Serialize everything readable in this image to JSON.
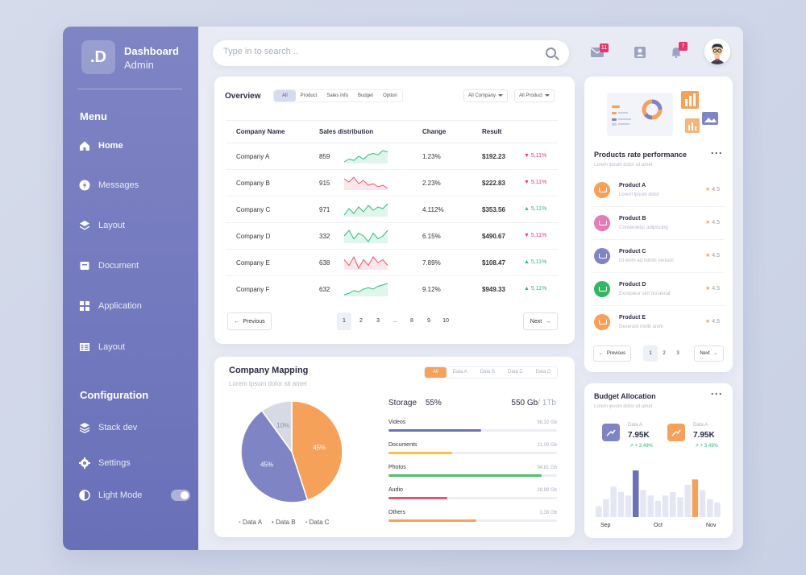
{
  "brand": {
    "logo": ".D",
    "title": "Dashboard",
    "subtitle": "Admin"
  },
  "menu": {
    "title": "Menu",
    "items": [
      {
        "label": "Home",
        "icon": "home-icon"
      },
      {
        "label": "Messages",
        "icon": "bolt-icon"
      },
      {
        "label": "Layout",
        "icon": "layers-icon"
      },
      {
        "label": "Document",
        "icon": "document-icon"
      },
      {
        "label": "Application",
        "icon": "grid-icon"
      },
      {
        "label": "Layout",
        "icon": "list-icon"
      }
    ]
  },
  "config": {
    "title": "Configuration",
    "items": [
      {
        "label": "Stack dev",
        "icon": "stack-icon"
      },
      {
        "label": "Settings",
        "icon": "gear-icon"
      },
      {
        "label": "Light Mode",
        "icon": "half-moon-icon"
      }
    ]
  },
  "search": {
    "placeholder": "Type in to search .."
  },
  "header": {
    "mail_badge": "11",
    "bell_badge": "7"
  },
  "overview": {
    "title": "Overview",
    "filters": [
      "All",
      "Product",
      "Sales Info",
      "Budget",
      "Option"
    ],
    "dropdown_company": "All Company",
    "dropdown_product": "All Product",
    "columns": [
      "Company Name",
      "Sales distribution",
      "Change",
      "Result"
    ],
    "rows": [
      {
        "name": "Company A",
        "sales": "859",
        "change": "1.23%",
        "result": "$192.23",
        "delta": "5,11%",
        "dir": "down",
        "spark": [
          4,
          6,
          5,
          8,
          6,
          9,
          10,
          9,
          12,
          11
        ]
      },
      {
        "name": "Company B",
        "sales": "915",
        "change": "2.23%",
        "result": "$222.83",
        "delta": "5,11%",
        "dir": "down",
        "spark": [
          10,
          8,
          11,
          7,
          9,
          6,
          7,
          5,
          6,
          4
        ]
      },
      {
        "name": "Company C",
        "sales": "971",
        "change": "4.112%",
        "result": "$353.56",
        "delta": "5,11%",
        "dir": "up",
        "spark": [
          5,
          9,
          6,
          10,
          7,
          11,
          8,
          10,
          9,
          12
        ]
      },
      {
        "name": "Company D",
        "sales": "332",
        "change": "6.15%",
        "result": "$490.67",
        "delta": "5,11%",
        "dir": "down",
        "spark": [
          8,
          10,
          7,
          9,
          8,
          6,
          9,
          7,
          8,
          10
        ]
      },
      {
        "name": "Company E",
        "sales": "638",
        "change": "7.89%",
        "result": "$108.47",
        "delta": "5,11%",
        "dir": "up",
        "spark": [
          9,
          7,
          10,
          6,
          9,
          7,
          10,
          8,
          9,
          7
        ]
      },
      {
        "name": "Company F",
        "sales": "632",
        "change": "9.12%",
        "result": "$949.33",
        "delta": "5,11%",
        "dir": "up",
        "spark": [
          4,
          5,
          7,
          6,
          8,
          9,
          8,
          10,
          11,
          12
        ]
      }
    ],
    "prev": "Previous",
    "next": "Next",
    "pages": [
      "1",
      "2",
      "3",
      "...",
      "8",
      "9",
      "10"
    ]
  },
  "mapping": {
    "title": "Company Mapping",
    "subtitle": "Lorem ipsum dolor sit amet",
    "filters": [
      "All",
      "Data A",
      "Data B",
      "Data C",
      "Data D"
    ],
    "storage_label": "Storage",
    "storage_pct": "55%",
    "storage_total_used": "550 Gb",
    "storage_total_cap": "/ 1Tb",
    "items": [
      {
        "label": "Videos",
        "value": "98,32 Gb",
        "fill": 0.55,
        "color": "#6a70b8"
      },
      {
        "label": "Documents",
        "value": "21,00 Gb",
        "fill": 0.38,
        "color": "#f5c242"
      },
      {
        "label": "Photos",
        "value": "94,81 Gb",
        "fill": 0.91,
        "color": "#4cc26a"
      },
      {
        "label": "Audio",
        "value": "28,98 Gb",
        "fill": 0.35,
        "color": "#e8546b"
      },
      {
        "label": "Others",
        "value": "3,38 Gb",
        "fill": 0.52,
        "color": "#f6a15a"
      }
    ],
    "legend": [
      "Data A",
      "Data B",
      "Data C"
    ]
  },
  "chart_data": {
    "type": "pie",
    "categories": [
      "Data A",
      "Data B",
      "Data C"
    ],
    "values": [
      45,
      45,
      10
    ],
    "labels": [
      "45%",
      "45%",
      "10%"
    ],
    "colors": [
      "#f6a15a",
      "#7e84c4",
      "#d7dae4"
    ]
  },
  "products": {
    "title": "Products rate performance",
    "subtitle": "Lorem ipsum dolor sit amet",
    "items": [
      {
        "name": "Product A",
        "desc": "Lorem ipsum dolor",
        "rating": "4.5",
        "color": "#f6a15a"
      },
      {
        "name": "Product B",
        "desc": "Consectetur adipiscing",
        "rating": "4.5",
        "color": "#e57bb6"
      },
      {
        "name": "Product C",
        "desc": "Ut enim ad minim veniam",
        "rating": "4.5",
        "color": "#7e84c4"
      },
      {
        "name": "Product D",
        "desc": "Excepteur sint occaecat",
        "rating": "4.5",
        "color": "#36b663"
      },
      {
        "name": "Product E",
        "desc": "Deserunt mollit anim",
        "rating": "4.5",
        "color": "#f6a15a"
      }
    ],
    "prev": "Previous",
    "next": "Next",
    "pages": [
      "1",
      "2",
      "3"
    ]
  },
  "budget": {
    "title": "Budget Allocation",
    "subtitle": "Lorem ipsum dolor sit amet",
    "stat1": {
      "label": "Data A",
      "value": "7.95K",
      "delta": "+ 3.49%"
    },
    "stat2": {
      "label": "Data A",
      "value": "7.95K",
      "delta": "+ 3.49%"
    },
    "months": [
      "Sep",
      "Oct",
      "Nov"
    ],
    "bars": [
      0.3,
      0.5,
      0.85,
      0.7,
      0.6,
      1.3,
      0.75,
      0.6,
      0.45,
      0.6,
      0.7,
      0.55,
      0.9,
      1.05,
      0.75,
      0.5,
      0.4
    ],
    "highlight": [
      5,
      13
    ]
  }
}
